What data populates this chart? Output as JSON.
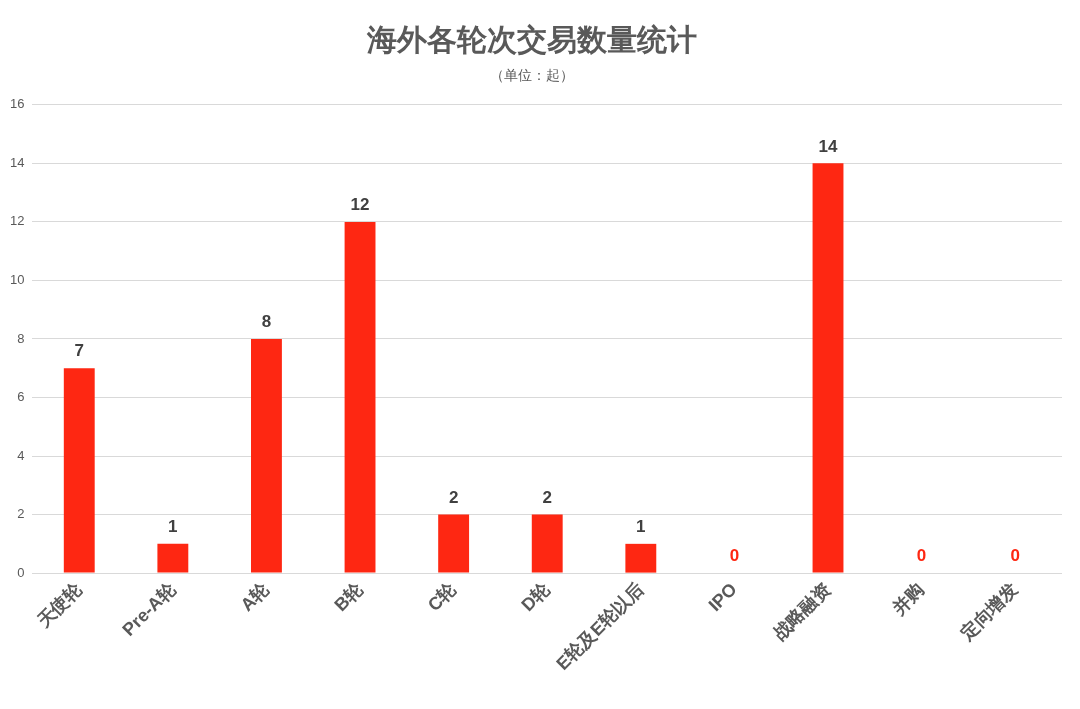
{
  "chart_data": {
    "type": "bar",
    "title": "海外各轮次交易数量统计",
    "subtitle": "（单位：起）",
    "categories": [
      "天使轮",
      "Pre-A轮",
      "A轮",
      "B轮",
      "C轮",
      "D轮",
      "E轮及E轮以后",
      "IPO",
      "战略融资",
      "并购",
      "定向增发"
    ],
    "values": [
      7,
      1,
      8,
      12,
      2,
      2,
      1,
      0,
      14,
      0,
      0
    ],
    "color": "#fe2712",
    "ylim": [
      0,
      16
    ],
    "yticks": [
      0,
      2,
      4,
      6,
      8,
      10,
      12,
      14,
      16
    ],
    "grid": "y",
    "data_labels": true,
    "legend": false
  }
}
